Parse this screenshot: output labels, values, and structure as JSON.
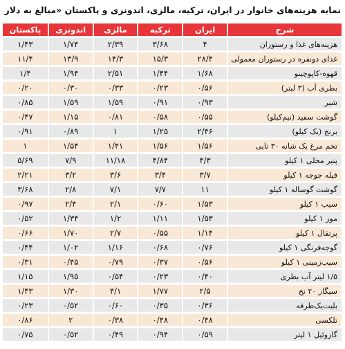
{
  "title": "نمایه هزینه‌های خانوار در ایران، ترکیه، مالزی، اندونزی و پاکستان «مبالغ به دلار آمریکا»",
  "columns": [
    "شرح",
    "ایران",
    "ترکیه",
    "مالزی",
    "اندونزی",
    "پاکستان"
  ],
  "rows": [
    {
      "item": "هزینه‌های غذا و رستوران",
      "iran": "۴",
      "turkey": "۳/۶۸",
      "malaysia": "۲/۳۹",
      "indonesia": "۱/۷۴",
      "pakistan": "۱/۴۳"
    },
    {
      "item": "غذای دونفره در رستوران معمولی",
      "iran": "۲۸/۴",
      "turkey": "۱۵/۳",
      "malaysia": "۱۴/۳",
      "indonesia": "۱۳/۹",
      "pakistan": "۱۱/۴"
    },
    {
      "item": "قهوه-کاپوچینو",
      "iran": "۱/۶۸",
      "turkey": "۱/۴۴",
      "malaysia": "۲/۵۱",
      "indonesia": "۱/۹۴",
      "pakistan": "۱/۴"
    },
    {
      "item": "بطری آب (۳ لیتر)",
      "iran": "۰/۵۶",
      "turkey": "۰/۲۳",
      "malaysia": "۰/۳۳",
      "indonesia": "۰/۳۰",
      "pakistan": "۰/۲۰"
    },
    {
      "item": "شیر",
      "iran": "۰/۹۳",
      "turkey": "۰/۹۱",
      "malaysia": "۱/۵۹",
      "indonesia": "۱/۵۹",
      "pakistan": "۰/۸۵"
    },
    {
      "item": "گوشت سفید (نیم‌کیلو)",
      "iran": "۰/۵۵",
      "turkey": "۰/۵۸",
      "malaysia": "۰/۸۱",
      "indonesia": "۱/۱۵",
      "pakistan": "۰/۴۷"
    },
    {
      "item": "برنج (یک کیلو)",
      "iran": "۲/۴۶",
      "turkey": "۱/۲۵",
      "malaysia": "۱",
      "indonesia": "۰/۸۹",
      "pakistan": "۰/۹۱"
    },
    {
      "item": "تخم مرغ یک شانه ۳۰ تایی",
      "iran": "۱/۵۶",
      "turkey": "۱/۵۶",
      "malaysia": "۱/۴۱",
      "indonesia": "۱/۵۴",
      "pakistan": "۱"
    },
    {
      "item": "پنیر محلی ۱ کیلو",
      "iran": "۴/۳",
      "turkey": "۴/۸۴",
      "malaysia": "۱۱/۱۸",
      "indonesia": "۷/۹",
      "pakistan": "۵/۶۹"
    },
    {
      "item": "فیله جوجه ۱ کیلو",
      "iran": "۳/۷",
      "turkey": "۳/۴",
      "malaysia": "۳/۶",
      "indonesia": "۳/۲",
      "pakistan": "۲/۲۱"
    },
    {
      "item": "گوشت گوساله ۱ کیلو",
      "iran": "۱۱",
      "turkey": "۷/۷",
      "malaysia": "۷/۱",
      "indonesia": "۲/۸",
      "pakistan": "۳/۶۸"
    },
    {
      "item": "سیب ۱ کیلو",
      "iran": "۱/۵۳",
      "turkey": "۰/۶۰",
      "malaysia": "۲/۱",
      "indonesia": "۲/۴",
      "pakistan": "۰/۹۷"
    },
    {
      "item": "موز ۱ کیلو",
      "iran": "۱/۵۳",
      "turkey": "۱/۱۱",
      "malaysia": "۱/۲",
      "indonesia": "۱/۳۴",
      "pakistan": "۰/۵۲"
    },
    {
      "item": "پرتقال ۱ کیلو",
      "iran": "۱/۱۴",
      "turkey": "۰/۵۵",
      "malaysia": "۲/۷",
      "indonesia": "۱/۷۰",
      "pakistan": "۰/۶۶"
    },
    {
      "item": "گوجه‌فرنگی ۱ کیلو",
      "iran": "۰/۷۶",
      "turkey": "۰/۶۸",
      "malaysia": "۱/۱۶",
      "indonesia": "۱/۰۲",
      "pakistan": "۰/۴۴"
    },
    {
      "item": "سیب‌زمینی ۱ کیلو",
      "iran": "۰/۵۶",
      "turkey": "۰/۳۷",
      "malaysia": "۰/۷۹",
      "indonesia": "۰/۴۵",
      "pakistan": "۰/۳۱"
    },
    {
      "item": "۱/۵ لیتر آب بطری",
      "iran": "۰/۴۰",
      "turkey": "۰/۲۳",
      "malaysia": "۰/۵۴",
      "indonesia": "۱/۹۵",
      "pakistan": "۱/۱۵"
    },
    {
      "item": "سیگار ۲۰ نخ",
      "iran": "۲/۵",
      "turkey": "۱/۷۷",
      "malaysia": "۴/۱",
      "indonesia": "۱/۳۰",
      "pakistan": "۱/۴۳"
    },
    {
      "item": "بلیت‌یک‌طرفه",
      "iran": "۰/۳۶",
      "turkey": "۰/۳۵",
      "malaysia": "۰/۶۰",
      "indonesia": "۰/۵۲",
      "pakistan": "۰/۲۳"
    },
    {
      "item": "تلکسی",
      "iran": "۰/۴۸",
      "turkey": "۰/۴۸",
      "malaysia": "۰/۳۸",
      "indonesia": "۲",
      "pakistan": "۰/۸۶"
    },
    {
      "item": "گازوئیل ۱ لیتر",
      "iran": "۰/۵۹",
      "turkey": "۰/۹۴",
      "malaysia": "۰/۴۹",
      "indonesia": "۰/۵۲",
      "pakistan": "۰/۷۵"
    }
  ],
  "colors": {
    "header_bg": "#e8353a",
    "row_gray": "#e8e8e8",
    "row_beige": "#f9e8d6"
  }
}
